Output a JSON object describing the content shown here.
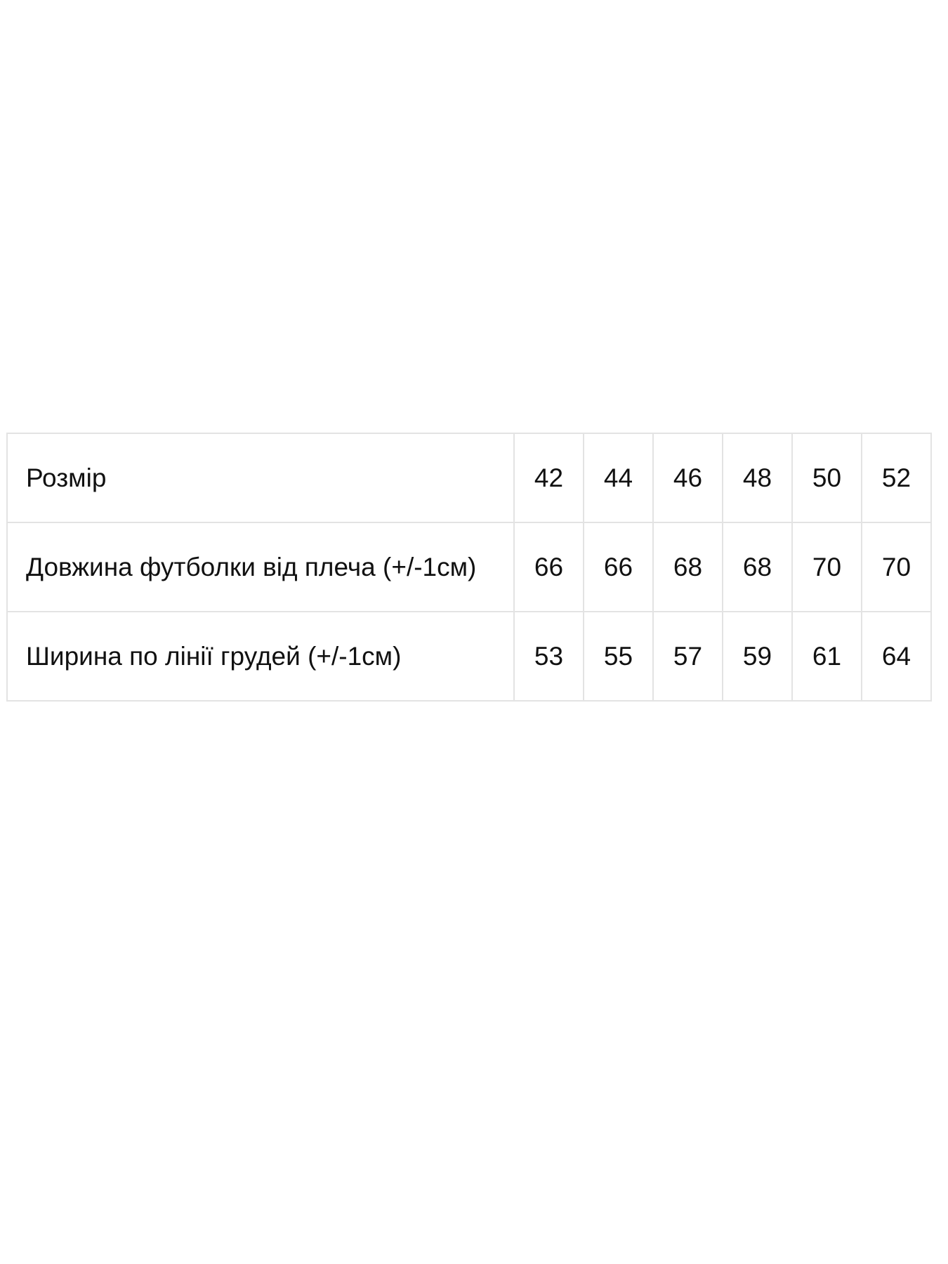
{
  "size_table": {
    "header": {
      "label": "Розмір",
      "values": [
        "42",
        "44",
        "46",
        "48",
        "50",
        "52"
      ]
    },
    "rows": [
      {
        "label": "Довжина футболки від плеча (+/-1см)",
        "values": [
          "66",
          "66",
          "68",
          "68",
          "70",
          "70"
        ]
      },
      {
        "label": "Ширина по лінії грудей (+/-1см)",
        "values": [
          "53",
          "55",
          "57",
          "59",
          "61",
          "64"
        ]
      }
    ]
  }
}
